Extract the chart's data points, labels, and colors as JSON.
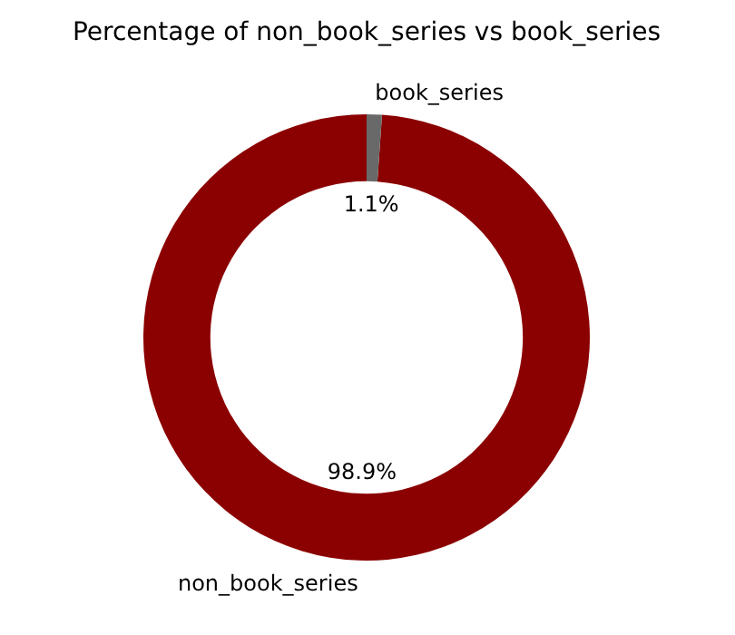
{
  "chart_data": {
    "type": "donut",
    "title": "Percentage of non_book_series vs book_series",
    "categories": [
      "non_book_series",
      "book_series"
    ],
    "values": [
      98.9,
      1.1
    ],
    "colors": [
      "#8b0000",
      "#696969"
    ],
    "value_labels": [
      "98.9%",
      "1.1%"
    ]
  }
}
